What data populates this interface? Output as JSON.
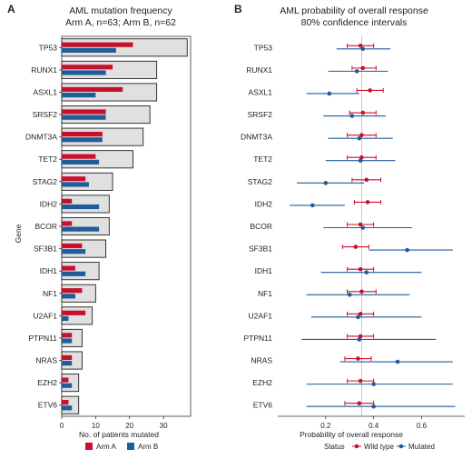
{
  "panels": {
    "a": "A",
    "b": "B"
  },
  "colors": {
    "arm_a": "#c8102e",
    "arm_b": "#1f5c99",
    "total_fill": "#e0e0e0",
    "total_stroke": "#222222",
    "wild_type": "#c8102e",
    "mutated": "#1f5c99",
    "ref_line": "#bbbbbb"
  },
  "chart_data": [
    {
      "type": "bar",
      "title": "AML mutation frequency",
      "subtitle": "Arm A, n=63; Arm B, n=62",
      "xlabel": "No. of patients mutated",
      "ylabel": "Gene",
      "xlim": [
        0,
        38
      ],
      "xticks": [
        0,
        10,
        20,
        30
      ],
      "categories": [
        "TP53",
        "RUNX1",
        "ASXL1",
        "SRSF2",
        "DNMT3A",
        "TET2",
        "STAG2",
        "IDH2",
        "BCOR",
        "SF3B1",
        "IDH1",
        "NF1",
        "U2AF1",
        "PTPN11",
        "NRAS",
        "EZH2",
        "ETV6"
      ],
      "total": [
        37,
        28,
        28,
        26,
        24,
        21,
        15,
        14,
        14,
        13,
        11,
        10,
        9,
        6,
        6,
        5,
        5
      ],
      "series": [
        {
          "name": "Arm A",
          "values": [
            21,
            15,
            18,
            13,
            12,
            10,
            7,
            3,
            3,
            6,
            4,
            6,
            7,
            3,
            3,
            2,
            2
          ]
        },
        {
          "name": "Arm B",
          "values": [
            16,
            13,
            10,
            13,
            12,
            11,
            8,
            11,
            11,
            7,
            7,
            4,
            2,
            3,
            3,
            3,
            3
          ]
        }
      ],
      "legend_position": "bottom"
    },
    {
      "type": "scatter",
      "title": "AML probability of overall response",
      "subtitle": "80% confidence intervals",
      "xlabel": "Probability of overall response",
      "xlim": [
        0.0,
        0.78
      ],
      "xticks": [
        0.2,
        0.4,
        0.6
      ],
      "reference_line": 0.35,
      "categories": [
        "TP53",
        "RUNX1",
        "ASXL1",
        "SRSF2",
        "DNMT3A",
        "TET2",
        "STAG2",
        "IDH2",
        "BCOR",
        "SF3B1",
        "IDH1",
        "NF1",
        "U2AF1",
        "PTPN11",
        "NRAS",
        "EZH2",
        "ETV6"
      ],
      "legend_title": "Status",
      "series": [
        {
          "name": "Wild type",
          "estimate": [
            0.345,
            0.355,
            0.385,
            0.355,
            0.35,
            0.35,
            0.37,
            0.375,
            0.345,
            0.325,
            0.345,
            0.35,
            0.345,
            0.345,
            0.335,
            0.345,
            0.34
          ],
          "low": [
            0.29,
            0.31,
            0.33,
            0.3,
            0.29,
            0.29,
            0.31,
            0.32,
            0.29,
            0.27,
            0.29,
            0.29,
            0.29,
            0.29,
            0.28,
            0.29,
            0.28
          ],
          "high": [
            0.4,
            0.41,
            0.44,
            0.41,
            0.41,
            0.41,
            0.43,
            0.43,
            0.4,
            0.38,
            0.4,
            0.41,
            0.4,
            0.4,
            0.39,
            0.4,
            0.4
          ]
        },
        {
          "name": "Mutated",
          "estimate": [
            0.355,
            0.33,
            0.215,
            0.31,
            0.34,
            0.345,
            0.2,
            0.145,
            0.355,
            0.54,
            0.37,
            0.3,
            0.335,
            0.34,
            0.5,
            0.4,
            0.4
          ],
          "low": [
            0.245,
            0.21,
            0.12,
            0.19,
            0.21,
            0.2,
            0.08,
            0.05,
            0.19,
            0.38,
            0.18,
            0.12,
            0.14,
            0.1,
            0.26,
            0.12,
            0.12
          ],
          "high": [
            0.47,
            0.46,
            0.34,
            0.45,
            0.48,
            0.49,
            0.36,
            0.28,
            0.56,
            0.73,
            0.6,
            0.55,
            0.6,
            0.66,
            0.73,
            0.73,
            0.74
          ]
        }
      ],
      "legend_position": "bottom"
    }
  ]
}
